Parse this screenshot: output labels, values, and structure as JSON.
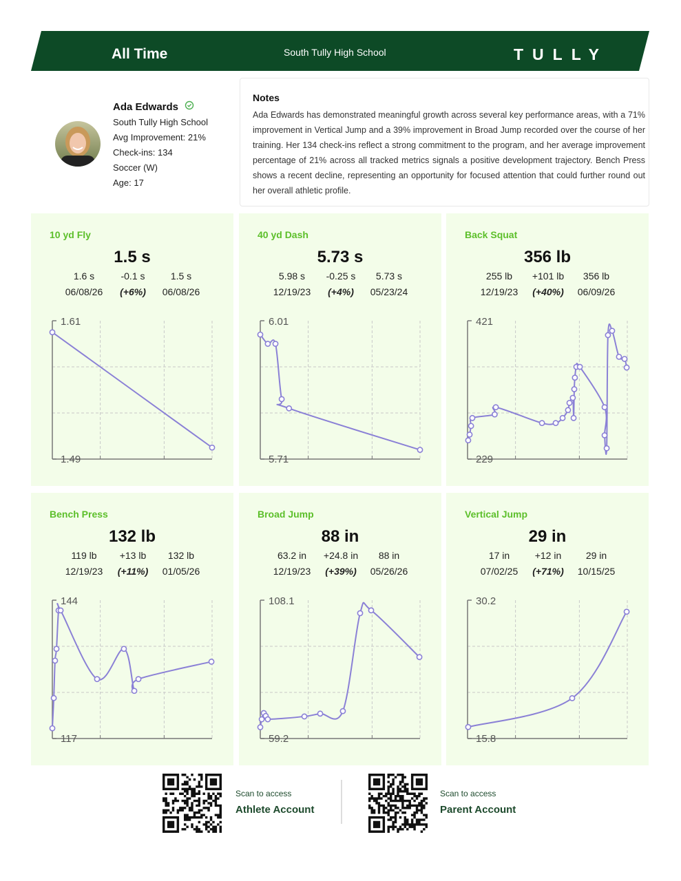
{
  "header": {
    "period": "All Time",
    "school": "South Tully High School",
    "brand": "TULLY"
  },
  "profile": {
    "name": "Ada Edwards",
    "school": "South Tully High School",
    "avg_improvement": "Avg Improvement: 21%",
    "checkins": "Check-ins: 134",
    "sport": "Soccer (W)",
    "age": "Age: 17"
  },
  "notes": {
    "title": "Notes",
    "body": "Ada Edwards has demonstrated meaningful growth across several key performance areas, with a 71% improvement in Vertical Jump and a 39% improvement in Broad Jump recorded over the course of her training. Her 134 check-ins reflect a strong commitment to the program, and her average improvement percentage of 21% across all tracked metrics signals a positive development trajectory. Bench Press shows a recent decline, representing an opportunity for focused attention that could further round out her overall athletic profile."
  },
  "metrics": [
    {
      "title": "10 yd Fly",
      "value": "1.5 s",
      "start_value": "1.6 s",
      "change": "-0.1 s",
      "current_value": "1.5 s",
      "start_date": "06/08/26",
      "change_percent": "(+6%)",
      "current_date": "06/08/26",
      "chart": {
        "type": "line",
        "x": [
          0,
          100
        ],
        "values": [
          1.6,
          1.5
        ],
        "xlim": [
          0,
          100
        ],
        "ylim": [
          1.49,
          1.61
        ],
        "grid": true,
        "color": "#8a80d6"
      }
    },
    {
      "title": "40 yd Dash",
      "value": "5.73 s",
      "start_value": "5.98 s",
      "change": "-0.25 s",
      "current_value": "5.73 s",
      "start_date": "12/19/23",
      "change_percent": "(+4%)",
      "current_date": "05/23/24",
      "chart": {
        "type": "line",
        "x": [
          0,
          4.7,
          9.5,
          13.4,
          18,
          100
        ],
        "values": [
          5.98,
          5.96,
          5.96,
          5.84,
          5.82,
          5.73
        ],
        "xlim": [
          0,
          100
        ],
        "ylim": [
          5.71,
          6.01
        ],
        "grid": true,
        "color": "#8a80d6"
      }
    },
    {
      "title": "Back Squat",
      "value": "356 lb",
      "start_value": "255 lb",
      "change": "+101 lb",
      "current_value": "356 lb",
      "start_date": "12/19/23",
      "change_percent": "(+40%)",
      "current_date": "06/09/26",
      "chart": {
        "type": "line",
        "x": [
          0.4,
          1.3,
          2.2,
          3,
          17,
          17.7,
          46.6,
          55.2,
          59.5,
          62.9,
          63.8,
          65.9,
          66.4,
          66.8,
          67.2,
          68.1,
          70.3,
          85.8,
          85.8,
          87.1,
          87.9,
          90.5,
          94.8,
          98.3,
          99.6
        ],
        "values": [
          255,
          263,
          275,
          286,
          291,
          301,
          279,
          279,
          286,
          297,
          307,
          314,
          286,
          326,
          342,
          357,
          357,
          301,
          262,
          244,
          401,
          407,
          371,
          368,
          356
        ],
        "xlim": [
          0,
          100
        ],
        "ylim": [
          229,
          421
        ],
        "grid": true,
        "color": "#8a80d6"
      }
    },
    {
      "title": "Bench Press",
      "value": "132 lb",
      "start_value": "119 lb",
      "change": "+13 lb",
      "current_value": "132 lb",
      "start_date": "12/19/23",
      "change_percent": "(+11%)",
      "current_date": "01/05/26",
      "chart": {
        "type": "line",
        "x": [
          0,
          0.9,
          1.7,
          2.6,
          3.9,
          5.2,
          28,
          44.8,
          51.3,
          53.9,
          99.6
        ],
        "values": [
          119,
          124.9,
          132.2,
          134.5,
          142,
          142,
          128.6,
          134.5,
          126.3,
          128.6,
          132
        ],
        "xlim": [
          0,
          100
        ],
        "ylim": [
          117,
          144
        ],
        "grid": true,
        "color": "#8a80d6"
      }
    },
    {
      "title": "Broad Jump",
      "value": "88 in",
      "start_value": "63.2 in",
      "change": "+24.8 in",
      "current_value": "88 in",
      "start_date": "12/19/23",
      "change_percent": "(+39%)",
      "current_date": "05/26/26",
      "chart": {
        "type": "line",
        "x": [
          0,
          0.9,
          2.2,
          3.4,
          4.7,
          27.6,
          37.5,
          51.7,
          62.5,
          69.4,
          99.6
        ],
        "values": [
          63.2,
          66,
          68.2,
          67.2,
          66,
          67,
          68,
          68.9,
          103.5,
          104.5,
          88
        ],
        "xlim": [
          0,
          100
        ],
        "ylim": [
          59.2,
          108.1
        ],
        "grid": true,
        "color": "#8a80d6"
      }
    },
    {
      "title": "Vertical Jump",
      "value": "29 in",
      "start_value": "17 in",
      "change": "+12 in",
      "current_value": "29 in",
      "start_date": "07/02/25",
      "change_percent": "(+71%)",
      "current_date": "10/15/25",
      "chart": {
        "type": "line",
        "x": [
          0.4,
          65.5,
          99.6
        ],
        "values": [
          17,
          20,
          29
        ],
        "xlim": [
          0,
          100
        ],
        "ylim": [
          15.8,
          30.2
        ],
        "grid": true,
        "color": "#8a80d6"
      }
    }
  ],
  "footer": {
    "athlete": {
      "prompt": "Scan to access",
      "label": "Athlete Account"
    },
    "parent": {
      "prompt": "Scan to access",
      "label": "Parent Account"
    }
  }
}
